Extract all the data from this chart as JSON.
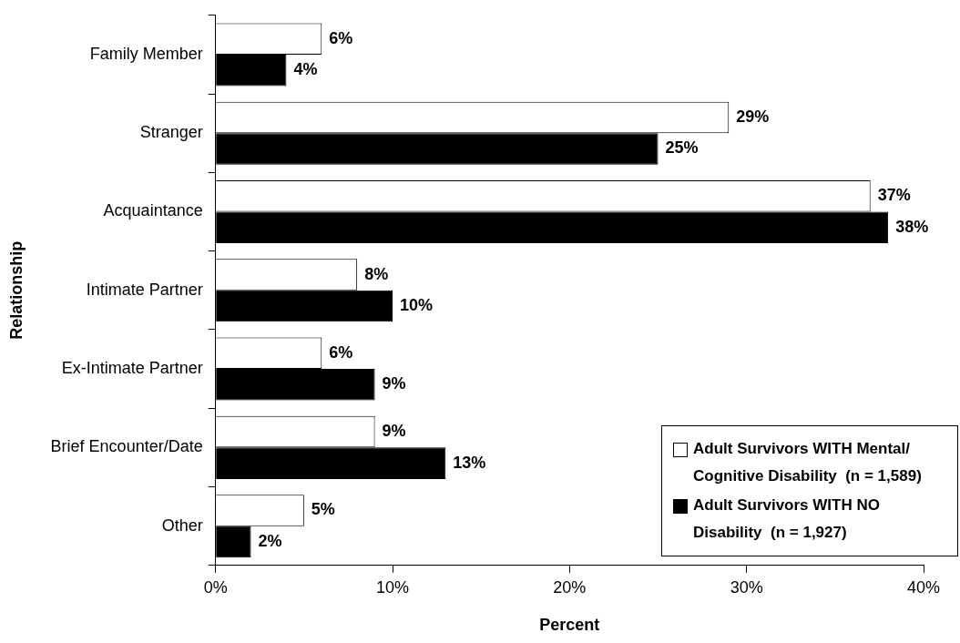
{
  "chart_data": {
    "type": "bar",
    "orientation": "horizontal",
    "xlabel": "Percent",
    "ylabel": "Relationship",
    "categories": [
      "Family Member",
      "Stranger",
      "Acquaintance",
      "Intimate Partner",
      "Ex-Intimate Partner",
      "Brief Encounter/Date",
      "Other"
    ],
    "series": [
      {
        "name": "Adult Survivors WITH Mental/ Cognitive Disability  (n = 1,589)",
        "color": "#ffffff",
        "values": [
          6,
          29,
          37,
          8,
          6,
          9,
          5
        ],
        "value_labels": [
          "6%",
          "29%",
          "37%",
          "8%",
          "6%",
          "9%",
          "5%"
        ]
      },
      {
        "name": "Adult Survivors WITH NO Disability  (n = 1,927)",
        "color": "#000000",
        "values": [
          4,
          25,
          38,
          10,
          9,
          13,
          2
        ],
        "value_labels": [
          "4%",
          "25%",
          "38%",
          "10%",
          "9%",
          "13%",
          "2%"
        ]
      }
    ],
    "xlim": [
      0,
      40
    ],
    "xticks": [
      {
        "value": 0,
        "label": "0%"
      },
      {
        "value": 10,
        "label": "10%"
      },
      {
        "value": 20,
        "label": "20%"
      },
      {
        "value": 30,
        "label": "30%"
      },
      {
        "value": 40,
        "label": "40%"
      }
    ],
    "legend": "bottom right",
    "grid": false
  }
}
